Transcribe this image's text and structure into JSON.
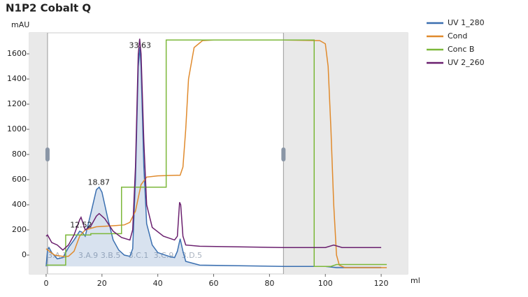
{
  "chart_data": {
    "type": "line",
    "title": "N1P2 Cobalt Q",
    "y_label": "mAU",
    "x_label": "ml",
    "xlim": [
      -6,
      129.5
    ],
    "ylim": [
      -150,
      1767
    ],
    "xticks": [
      0,
      20,
      40,
      60,
      80,
      100,
      120
    ],
    "yticks": [
      0,
      200,
      400,
      600,
      800,
      1000,
      1200,
      1400,
      1600
    ],
    "shaded_x_ranges": [
      [
        -6,
        0.5
      ],
      [
        85,
        129.5
      ]
    ],
    "series": [
      {
        "name": "UV 1_280",
        "color": "#3a6fb0",
        "x": [
          0,
          0.5,
          1,
          2,
          4,
          6,
          8,
          10,
          12,
          13,
          14,
          16,
          18,
          19,
          20,
          22,
          24,
          26,
          28,
          30,
          31,
          32,
          33,
          33.6,
          34,
          35,
          36,
          38,
          40,
          44,
          46,
          47,
          48,
          49,
          50,
          55,
          85,
          100,
          104,
          120
        ],
        "values": [
          -90,
          40,
          60,
          20,
          -30,
          -20,
          60,
          120,
          190,
          180,
          150,
          330,
          520,
          540,
          500,
          300,
          120,
          40,
          0,
          -10,
          50,
          600,
          1500,
          1650,
          1500,
          700,
          250,
          80,
          20,
          -10,
          -20,
          30,
          130,
          30,
          -50,
          -80,
          -90,
          -90,
          -100,
          -100
        ]
      },
      {
        "name": "Cond",
        "color": "#e08a2c",
        "x": [
          0,
          3,
          6,
          8,
          10,
          12,
          14,
          18,
          25,
          28,
          30,
          32,
          34,
          36,
          40,
          48,
          49,
          50,
          51,
          53,
          56,
          60,
          85,
          98,
          100,
          101,
          102,
          103,
          104,
          105,
          107,
          122
        ],
        "values": [
          50,
          0,
          -10,
          -10,
          30,
          150,
          200,
          225,
          235,
          240,
          260,
          350,
          560,
          620,
          630,
          635,
          700,
          1000,
          1400,
          1650,
          1705,
          1710,
          1710,
          1705,
          1680,
          1500,
          1000,
          400,
          0,
          -80,
          -100,
          -100
        ]
      },
      {
        "name": "Conc B",
        "color": "#7cb83a",
        "x": [
          0,
          7,
          7,
          16,
          16,
          27,
          27,
          43,
          43,
          96,
          96,
          102,
          104,
          122
        ],
        "values": [
          -80,
          -80,
          160,
          160,
          170,
          170,
          540,
          540,
          1710,
          1710,
          -90,
          -90,
          -75,
          -75
        ]
      },
      {
        "name": "UV 2_260",
        "color": "#6a1f6e",
        "x": [
          0,
          0.5,
          2,
          4,
          6,
          8,
          10,
          12,
          12.5,
          14,
          16,
          18,
          19,
          21,
          24,
          27,
          30,
          31,
          32,
          33,
          33.5,
          34,
          35,
          36,
          38,
          42,
          46,
          47,
          47.8,
          48.2,
          49,
          50,
          55,
          85,
          100,
          103,
          106,
          120
        ],
        "values": [
          150,
          160,
          100,
          80,
          40,
          80,
          160,
          280,
          300,
          200,
          230,
          310,
          330,
          290,
          190,
          140,
          120,
          200,
          700,
          1600,
          1720,
          1600,
          900,
          400,
          220,
          150,
          120,
          150,
          420,
          400,
          150,
          80,
          70,
          60,
          60,
          80,
          60,
          60
        ]
      }
    ],
    "annotations": [
      {
        "label": "12.52",
        "x": 12.52,
        "y": 235
      },
      {
        "label": "18.87",
        "x": 18.87,
        "y": 575
      },
      {
        "label": "33.63",
        "x": 33.63,
        "y": 1665
      }
    ],
    "fractions": [
      {
        "label": "3.A.1",
        "x": 0
      },
      {
        "label": "3.A.9",
        "x": 11
      },
      {
        "label": "3.B.5",
        "x": 19
      },
      {
        "label": "3.C.1",
        "x": 29
      },
      {
        "label": "3.C.9",
        "x": 38
      },
      {
        "label": "3.D.5",
        "x": 48
      }
    ]
  }
}
